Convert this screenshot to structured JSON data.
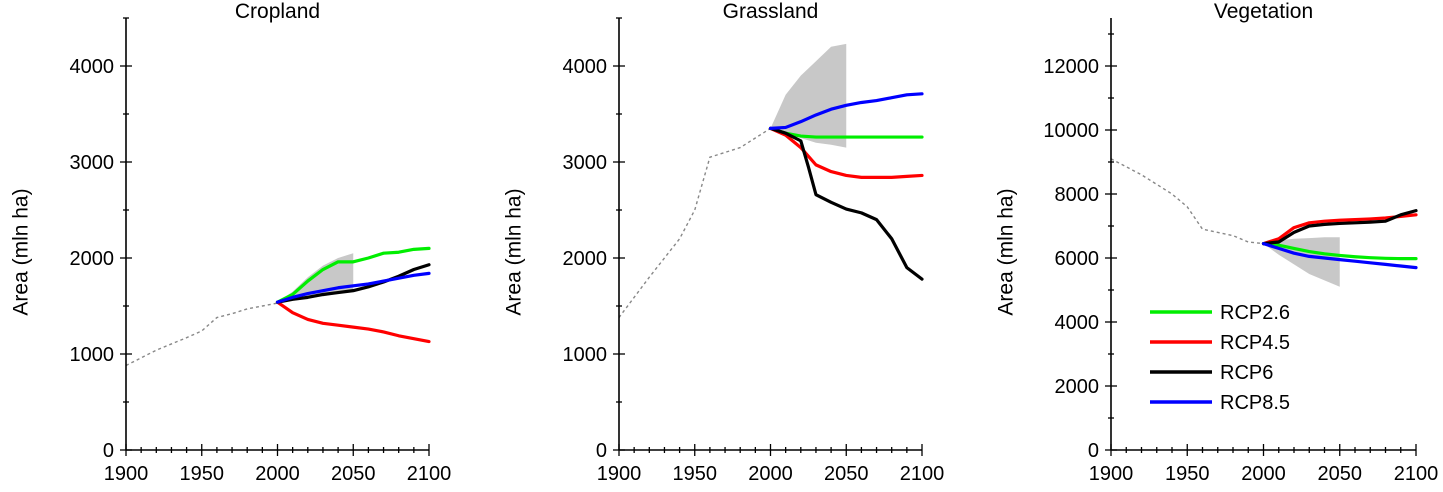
{
  "figure": {
    "legend_items": [
      "RCP2.6",
      "RCP4.5",
      "RCP6",
      "RCP8.5"
    ]
  },
  "colors": {
    "RCP2.6": "#00ee00",
    "RCP4.5": "#ff0000",
    "RCP6": "#000000",
    "RCP8.5": "#0000ff",
    "historical": "#888888",
    "range": "#c8c8c8"
  },
  "chart_data": [
    {
      "type": "line",
      "title": "Cropland",
      "xlabel": "",
      "ylabel": "Area (mln ha)",
      "xlim": [
        1900,
        2100
      ],
      "ylim": [
        0,
        4500
      ],
      "xticks": [
        1900,
        1950,
        2000,
        2050,
        2100
      ],
      "yticks": [
        0,
        1000,
        2000,
        3000,
        4000
      ],
      "historical": {
        "x": [
          1900,
          1920,
          1940,
          1950,
          1960,
          1970,
          1980,
          1990,
          2000
        ],
        "y": [
          880,
          1040,
          1170,
          1240,
          1380,
          1420,
          1470,
          1500,
          1530
        ]
      },
      "range": {
        "x": [
          2000,
          2010,
          2020,
          2030,
          2040,
          2050
        ],
        "upper": [
          1540,
          1650,
          1800,
          1920,
          2000,
          2050
        ],
        "lower": [
          1540,
          1560,
          1580,
          1600,
          1630,
          1650
        ]
      },
      "series": [
        {
          "name": "RCP2.6",
          "x": [
            2000,
            2010,
            2020,
            2030,
            2040,
            2050,
            2060,
            2070,
            2080,
            2090,
            2100
          ],
          "y": [
            1540,
            1620,
            1760,
            1880,
            1960,
            1960,
            2000,
            2050,
            2060,
            2090,
            2100
          ]
        },
        {
          "name": "RCP4.5",
          "x": [
            2000,
            2010,
            2020,
            2030,
            2040,
            2050,
            2060,
            2070,
            2080,
            2090,
            2100
          ],
          "y": [
            1540,
            1430,
            1360,
            1320,
            1300,
            1280,
            1260,
            1230,
            1190,
            1160,
            1130
          ]
        },
        {
          "name": "RCP6",
          "x": [
            2000,
            2010,
            2020,
            2030,
            2040,
            2050,
            2060,
            2070,
            2080,
            2090,
            2100
          ],
          "y": [
            1540,
            1570,
            1590,
            1620,
            1640,
            1660,
            1700,
            1750,
            1810,
            1880,
            1930
          ]
        },
        {
          "name": "RCP8.5",
          "x": [
            2000,
            2010,
            2020,
            2030,
            2040,
            2050,
            2060,
            2070,
            2080,
            2090,
            2100
          ],
          "y": [
            1540,
            1590,
            1630,
            1660,
            1690,
            1710,
            1730,
            1760,
            1790,
            1820,
            1840
          ]
        }
      ]
    },
    {
      "type": "line",
      "title": "Grassland",
      "xlabel": "",
      "ylabel": "Area (mln ha)",
      "xlim": [
        1900,
        2100
      ],
      "ylim": [
        0,
        4500
      ],
      "xticks": [
        1900,
        1950,
        2000,
        2050,
        2100
      ],
      "yticks": [
        0,
        1000,
        2000,
        3000,
        4000
      ],
      "historical": {
        "x": [
          1900,
          1920,
          1940,
          1950,
          1960,
          1980,
          1990,
          2000
        ],
        "y": [
          1380,
          1800,
          2200,
          2500,
          3050,
          3150,
          3250,
          3350
        ]
      },
      "range": {
        "x": [
          2000,
          2010,
          2020,
          2030,
          2040,
          2050
        ],
        "upper": [
          3350,
          3700,
          3900,
          4050,
          4200,
          4230
        ],
        "lower": [
          3350,
          3300,
          3250,
          3200,
          3180,
          3150
        ]
      },
      "series": [
        {
          "name": "RCP2.6",
          "x": [
            2000,
            2010,
            2020,
            2030,
            2040,
            2050,
            2060,
            2070,
            2080,
            2090,
            2100
          ],
          "y": [
            3350,
            3300,
            3270,
            3260,
            3260,
            3260,
            3260,
            3260,
            3260,
            3260,
            3260
          ]
        },
        {
          "name": "RCP4.5",
          "x": [
            2000,
            2010,
            2020,
            2030,
            2040,
            2050,
            2060,
            2070,
            2080,
            2090,
            2100
          ],
          "y": [
            3350,
            3280,
            3150,
            2970,
            2900,
            2860,
            2840,
            2840,
            2840,
            2850,
            2860
          ]
        },
        {
          "name": "RCP6",
          "x": [
            2000,
            2010,
            2020,
            2025,
            2030,
            2040,
            2050,
            2060,
            2070,
            2080,
            2090,
            2100
          ],
          "y": [
            3350,
            3300,
            3220,
            2950,
            2660,
            2580,
            2510,
            2470,
            2400,
            2200,
            1900,
            1780
          ]
        },
        {
          "name": "RCP8.5",
          "x": [
            2000,
            2010,
            2020,
            2030,
            2040,
            2050,
            2060,
            2070,
            2080,
            2090,
            2100
          ],
          "y": [
            3350,
            3360,
            3420,
            3490,
            3550,
            3590,
            3620,
            3640,
            3670,
            3700,
            3710
          ]
        }
      ]
    },
    {
      "type": "line",
      "title": "Vegetation",
      "xlabel": "",
      "ylabel": "Area (mln ha)",
      "xlim": [
        1900,
        2100
      ],
      "ylim": [
        0,
        13500
      ],
      "xticks": [
        1900,
        1950,
        2000,
        2050,
        2100
      ],
      "yticks": [
        0,
        2000,
        4000,
        6000,
        8000,
        10000,
        12000
      ],
      "historical": {
        "x": [
          1900,
          1920,
          1940,
          1950,
          1960,
          1980,
          1990,
          2000
        ],
        "y": [
          9100,
          8600,
          8000,
          7600,
          6900,
          6700,
          6500,
          6450
        ]
      },
      "range": {
        "x": [
          2000,
          2010,
          2020,
          2030,
          2040,
          2050
        ],
        "upper": [
          6450,
          6550,
          6600,
          6620,
          6650,
          6650
        ],
        "lower": [
          6450,
          6100,
          5800,
          5500,
          5300,
          5100
        ]
      },
      "series": [
        {
          "name": "RCP2.6",
          "x": [
            2000,
            2010,
            2020,
            2030,
            2040,
            2050,
            2060,
            2070,
            2080,
            2090,
            2100
          ],
          "y": [
            6450,
            6400,
            6300,
            6200,
            6130,
            6080,
            6040,
            6010,
            5990,
            5980,
            5980
          ]
        },
        {
          "name": "RCP4.5",
          "x": [
            2000,
            2010,
            2020,
            2030,
            2040,
            2050,
            2060,
            2070,
            2080,
            2090,
            2100
          ],
          "y": [
            6450,
            6600,
            6950,
            7100,
            7150,
            7180,
            7200,
            7220,
            7250,
            7300,
            7350
          ]
        },
        {
          "name": "RCP6",
          "x": [
            2000,
            2010,
            2020,
            2030,
            2040,
            2050,
            2060,
            2070,
            2080,
            2090,
            2100
          ],
          "y": [
            6450,
            6500,
            6800,
            7000,
            7050,
            7080,
            7100,
            7120,
            7150,
            7350,
            7480
          ]
        },
        {
          "name": "RCP8.5",
          "x": [
            2000,
            2010,
            2020,
            2030,
            2040,
            2050,
            2060,
            2070,
            2080,
            2090,
            2100
          ],
          "y": [
            6450,
            6300,
            6150,
            6050,
            6000,
            5950,
            5900,
            5850,
            5800,
            5750,
            5700
          ]
        }
      ]
    }
  ]
}
